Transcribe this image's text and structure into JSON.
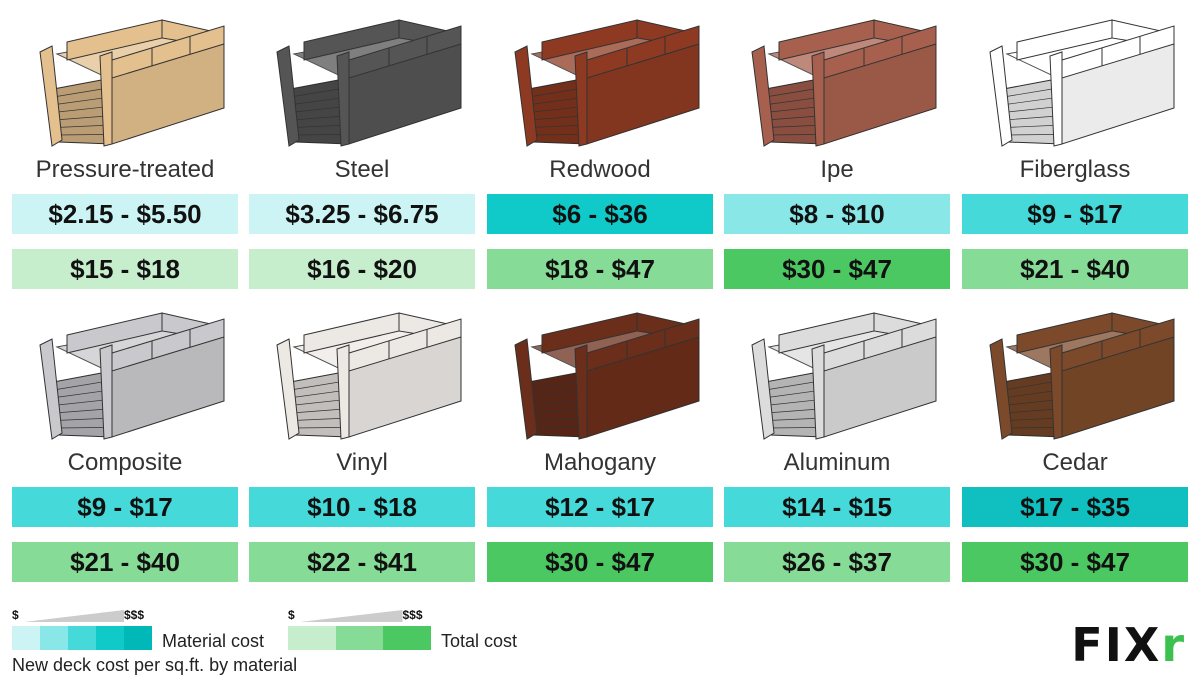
{
  "materials": [
    {
      "name": "Pressure-treated",
      "material": "$2.15 - $5.50",
      "total": "$15 - $18",
      "material_color": "#cdf4f4",
      "total_color": "#c6eecd",
      "deck_color": "#e3c08e"
    },
    {
      "name": "Steel",
      "material": "$3.25 - $6.75",
      "total": "$16 - $20",
      "material_color": "#cdf4f4",
      "total_color": "#c6eecd",
      "deck_color": "#555555"
    },
    {
      "name": "Redwood",
      "material": "$6 - $36",
      "total": "$18 - $47",
      "material_color": "#10c9c9",
      "total_color": "#86dc96",
      "deck_color": "#8e3a22"
    },
    {
      "name": "Ipe",
      "material": "$8 - $10",
      "total": "$30 - $47",
      "material_color": "#8ae7e7",
      "total_color": "#4cc863",
      "deck_color": "#a8604e"
    },
    {
      "name": "Fiberglass",
      "material": "$9 - $17",
      "total": "$21 - $40",
      "material_color": "#45d9d9",
      "total_color": "#86dc96",
      "deck_color": "#ffffff"
    },
    {
      "name": "Composite",
      "material": "$9 - $17",
      "total": "$21 - $40",
      "material_color": "#45d9d9",
      "total_color": "#86dc96",
      "deck_color": "#c9c9cd"
    },
    {
      "name": "Vinyl",
      "material": "$10 - $18",
      "total": "$22 - $41",
      "material_color": "#45d9d9",
      "total_color": "#86dc96",
      "deck_color": "#ece8e4"
    },
    {
      "name": "Mahogany",
      "material": "$12 - $17",
      "total": "$30 - $47",
      "material_color": "#45d9d9",
      "total_color": "#4cc863",
      "deck_color": "#6b2e1a"
    },
    {
      "name": "Aluminum",
      "material": "$14 - $15",
      "total": "$26 - $37",
      "material_color": "#45d9d9",
      "total_color": "#86dc96",
      "deck_color": "#dcdcdc"
    },
    {
      "name": "Cedar",
      "material": "$17 - $35",
      "total": "$30 - $47",
      "material_color": "#10c0c0",
      "total_color": "#4cc863",
      "deck_color": "#7c4a2a"
    }
  ],
  "legend": {
    "low": "$",
    "high": "$$$",
    "material_label": "Material cost",
    "total_label": "Total cost",
    "material_scale": [
      "#cdf4f4",
      "#8ae7e7",
      "#45d9d9",
      "#10c9c9",
      "#00b8b8"
    ],
    "total_scale": [
      "#c6eecd",
      "#86dc96",
      "#4cc863"
    ],
    "note": "New deck cost per sq.ft. by material"
  },
  "logo": {
    "main": "FIX",
    "accent": "r"
  }
}
